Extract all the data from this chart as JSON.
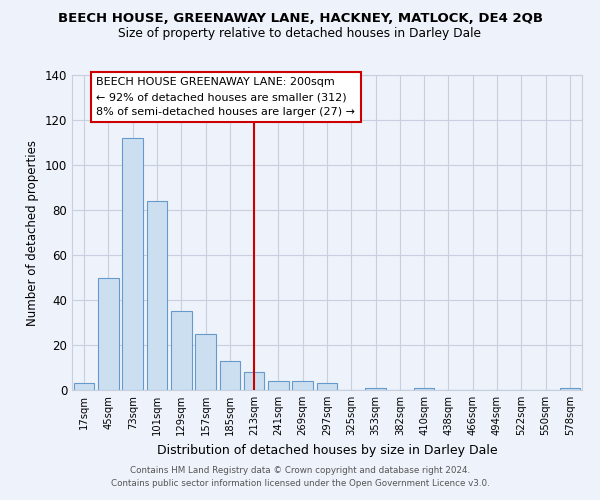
{
  "title": "BEECH HOUSE, GREENAWAY LANE, HACKNEY, MATLOCK, DE4 2QB",
  "subtitle": "Size of property relative to detached houses in Darley Dale",
  "xlabel": "Distribution of detached houses by size in Darley Dale",
  "ylabel": "Number of detached properties",
  "bar_color": "#ccdff0",
  "bar_edge_color": "#6699cc",
  "categories": [
    "17sqm",
    "45sqm",
    "73sqm",
    "101sqm",
    "129sqm",
    "157sqm",
    "185sqm",
    "213sqm",
    "241sqm",
    "269sqm",
    "297sqm",
    "325sqm",
    "353sqm",
    "382sqm",
    "410sqm",
    "438sqm",
    "466sqm",
    "494sqm",
    "522sqm",
    "550sqm",
    "578sqm"
  ],
  "values": [
    3,
    50,
    112,
    84,
    35,
    25,
    13,
    8,
    4,
    4,
    3,
    0,
    1,
    0,
    1,
    0,
    0,
    0,
    0,
    0,
    1
  ],
  "ylim": [
    0,
    140
  ],
  "yticks": [
    0,
    20,
    40,
    60,
    80,
    100,
    120,
    140
  ],
  "vline_x": 7,
  "vline_color": "#cc0000",
  "annotation_line1": "BEECH HOUSE GREENAWAY LANE: 200sqm",
  "annotation_line2": "← 92% of detached houses are smaller (312)",
  "annotation_line3": "8% of semi-detached houses are larger (27) →",
  "footer_line1": "Contains HM Land Registry data © Crown copyright and database right 2024.",
  "footer_line2": "Contains public sector information licensed under the Open Government Licence v3.0.",
  "background_color": "#eef2fa",
  "grid_color": "#c8d0e0"
}
